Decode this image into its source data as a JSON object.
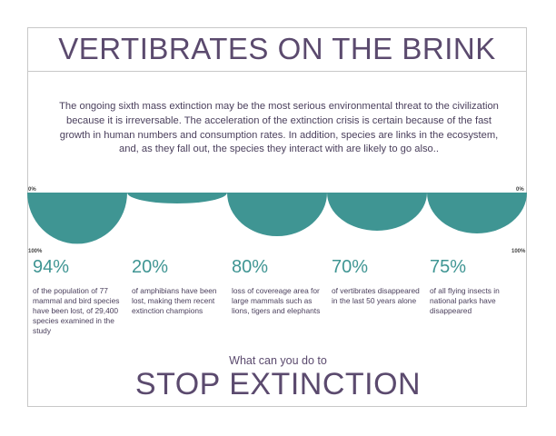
{
  "title": "VERTIBRATES ON THE BRINK",
  "intro": "The ongoing sixth mass extinction may be the most serious environmental threat to the civilization because it is irreversable. The acceleration of the extinction crisis is certain because of the fast growth in human numbers and consumption rates. In addition, species are links in the ecosystem, and, as they fall out, the species they interact with are likely to go also..",
  "colors": {
    "accent": "#3f9593",
    "text": "#5b4a6e"
  },
  "chart_data": {
    "type": "area",
    "axis": {
      "top_label": "0%",
      "bottom_label": "100%",
      "range": [
        0,
        100
      ]
    },
    "categories": [
      "94%",
      "20%",
      "80%",
      "70%",
      "75%"
    ],
    "values": [
      94,
      20,
      80,
      70,
      75
    ],
    "descriptions": [
      "of the population of 77 mammal and bird species have been lost, of 29,400 species examined in the study",
      "of amphibians have been lost, making them recent extinction champions",
      "loss of covereage area for large mammals such as lions, tigers and elephants",
      "of vertibrates disappeared in the last 50 years alone",
      "of all flying insects in national parks have disappeared"
    ]
  },
  "cta": "What can you do to",
  "stop": "STOP EXTINCTION"
}
